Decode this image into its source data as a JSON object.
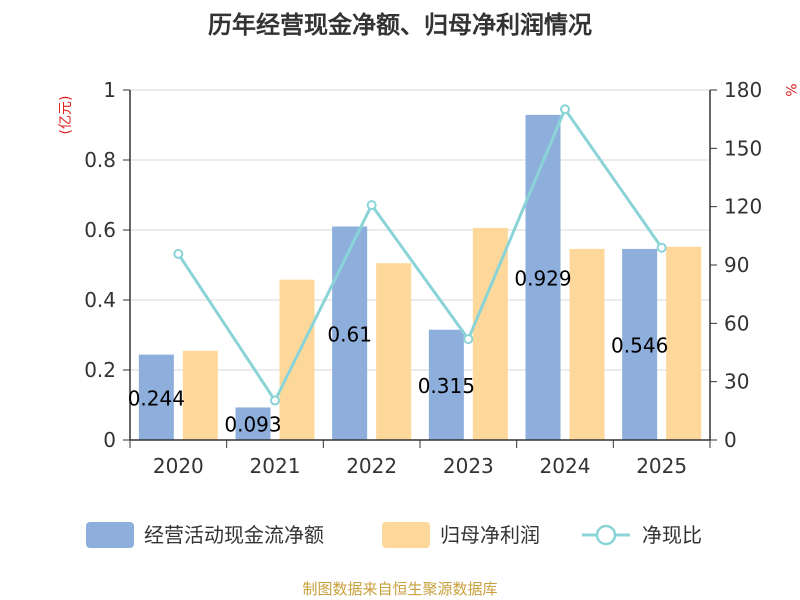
{
  "chart_data": {
    "type": "bar",
    "title": "历年经营现金净额、归母净利润情况",
    "categories": [
      "2020",
      "2021",
      "2022",
      "2023",
      "2024",
      "2025"
    ],
    "series": [
      {
        "name": "经营活动现金流净额",
        "type": "bar",
        "axis": "left",
        "color": "#8eaedc",
        "values": [
          0.244,
          0.093,
          0.61,
          0.315,
          0.929,
          0.546
        ],
        "labels": [
          "0.244",
          "0.093",
          "0.61",
          "0.315",
          "0.929",
          "0.546"
        ]
      },
      {
        "name": "归母净利润",
        "type": "bar",
        "axis": "left",
        "color": "#fdd89a",
        "values": [
          0.255,
          0.458,
          0.505,
          0.606,
          0.546,
          0.552
        ]
      },
      {
        "name": "净现比",
        "type": "line",
        "axis": "right",
        "color": "#8ad4d8",
        "values": [
          95.7,
          20.3,
          120.8,
          51.9,
          170.1,
          98.9
        ]
      }
    ],
    "y_left": {
      "unit": "(亿元)",
      "min": 0,
      "max": 1,
      "ticks": [
        "0",
        "0.2",
        "0.4",
        "0.6",
        "0.8",
        "1"
      ],
      "tick_values": [
        0,
        0.2,
        0.4,
        0.6,
        0.8,
        1
      ]
    },
    "y_right": {
      "unit": "%",
      "min": 0,
      "max": 180,
      "ticks": [
        "0",
        "30",
        "60",
        "90",
        "120",
        "150",
        "180"
      ],
      "tick_values": [
        0,
        30,
        60,
        90,
        120,
        150,
        180
      ]
    },
    "grid": true,
    "legend_position": "bottom",
    "unit_color": "#e02020"
  },
  "footer": {
    "source": "制图数据来自恒生聚源数据库",
    "color": "#c8a03c"
  }
}
